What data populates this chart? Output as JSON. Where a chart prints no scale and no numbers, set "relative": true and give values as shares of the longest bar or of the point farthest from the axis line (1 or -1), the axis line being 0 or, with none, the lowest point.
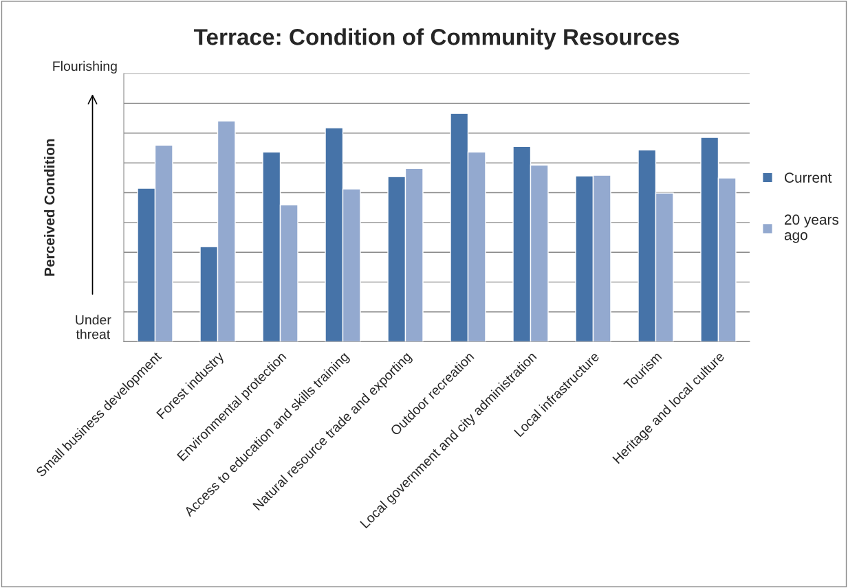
{
  "chart_data": {
    "type": "bar",
    "title": "Terrace: Condition of Community Resources",
    "ylabel": "Perceived Condition",
    "relative": true,
    "categories": [
      "Small business development",
      "Forest industry",
      "Environmental protection",
      "Access to education and skills training",
      "Natural resource trade and exporting",
      "Outdoor recreation",
      "Local government and city administration",
      "Local infrastructure",
      "Tourism",
      "Heritage and local culture"
    ],
    "series": [
      {
        "name": "Current",
        "color": "#4673a8",
        "values": [
          0.672,
          0.416,
          0.831,
          0.937,
          0.723,
          1.0,
          0.855,
          0.726,
          0.84,
          0.895
        ]
      },
      {
        "name": "20 years ago",
        "color": "#93a9cf",
        "values": [
          0.861,
          0.967,
          0.599,
          0.669,
          0.759,
          0.831,
          0.774,
          0.729,
          0.651,
          0.717
        ]
      }
    ],
    "annotations": [
      "Flourishing",
      "Under threat"
    ],
    "grid": "y",
    "legend": "right"
  }
}
